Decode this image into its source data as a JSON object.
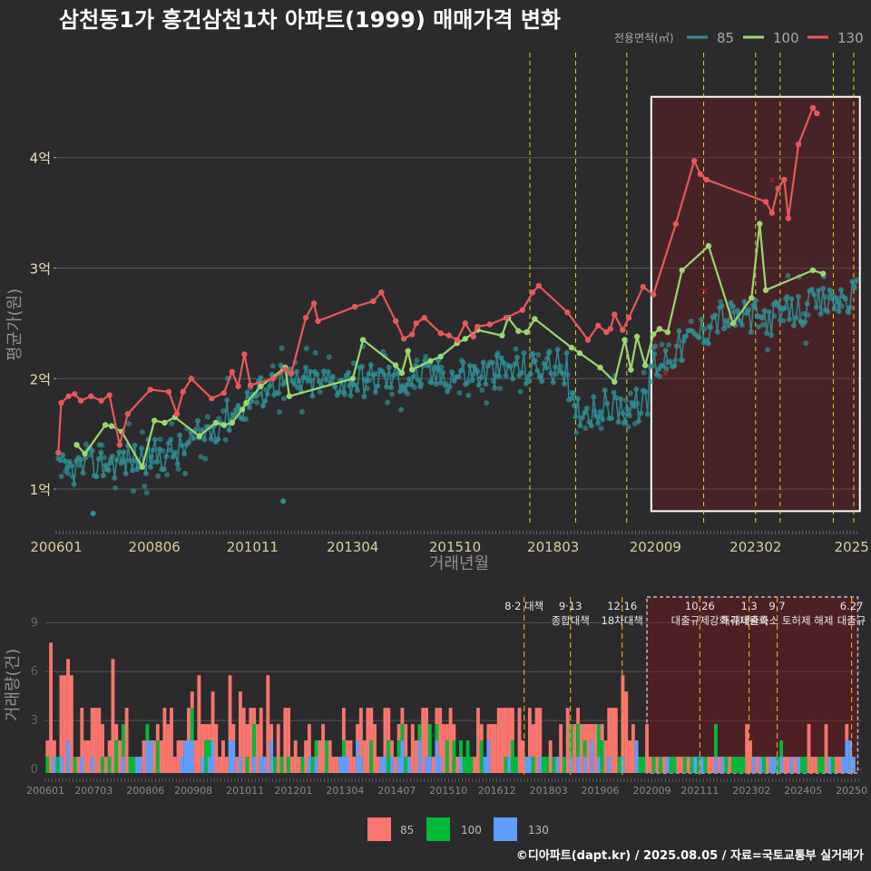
{
  "title": "삼천동1가 흥건삼천1차 아파트(1999) 매매가격 변화",
  "footer": "©디아파트(dapt.kr) / 2025.08.05 / 자료=국토교통부 실거래가",
  "legend_top": {
    "title": "전용면적(㎡)",
    "items": [
      "85",
      "100",
      "130"
    ]
  },
  "legend_bottom": {
    "items": [
      "85",
      "100",
      "130"
    ]
  },
  "colors": {
    "85": "#2f8f93",
    "100": "#9ad672",
    "130": "#e8585a",
    "bar85": "#f8766d",
    "bar100": "#00ba38",
    "bar130": "#619cff",
    "policy": "#e6d21e",
    "highlight": "#ffffff"
  },
  "chart_data": [
    {
      "type": "line",
      "title": "삼천동1가 흥건삼천1차 아파트(1999) 매매가격 변화",
      "xlabel": "거래년월",
      "ylabel": "평균가(원)",
      "x_ticks": [
        "200601",
        "200806",
        "201011",
        "201304",
        "201510",
        "201803",
        "202009",
        "202302",
        "2025"
      ],
      "y_ticks": [
        "1억",
        "2억",
        "3억",
        "4억"
      ],
      "ylim": [
        0.68,
        4.95
      ],
      "xlim": [
        2006.0,
        2025.7
      ],
      "grid": true,
      "legend_placement": "top-right",
      "policy_lines": [
        2017.58,
        2018.7,
        2019.95,
        2021.83,
        2023.1,
        2023.7,
        2025.0,
        2025.5
      ],
      "highlight_box": {
        "x": [
          2020.55,
          2025.65
        ],
        "y": [
          0.8,
          4.55
        ]
      },
      "series": [
        {
          "name": "130",
          "points": [
            [
              2006.05,
              1.33
            ],
            [
              2006.12,
              1.78
            ],
            [
              2006.3,
              1.84
            ],
            [
              2006.45,
              1.86
            ],
            [
              2006.6,
              1.8
            ],
            [
              2006.85,
              1.84
            ],
            [
              2007.1,
              1.8
            ],
            [
              2007.3,
              1.85
            ],
            [
              2007.55,
              1.4
            ],
            [
              2007.75,
              1.68
            ],
            [
              2008.3,
              1.9
            ],
            [
              2008.75,
              1.88
            ],
            [
              2008.95,
              1.68
            ],
            [
              2009.1,
              1.88
            ],
            [
              2009.3,
              2.0
            ],
            [
              2009.8,
              1.82
            ],
            [
              2010.1,
              1.87
            ],
            [
              2010.3,
              2.06
            ],
            [
              2010.45,
              1.93
            ],
            [
              2010.6,
              2.22
            ],
            [
              2010.75,
              1.94
            ],
            [
              2011.3,
              2.0
            ],
            [
              2011.6,
              2.08
            ],
            [
              2011.75,
              2.05
            ],
            [
              2012.1,
              2.55
            ],
            [
              2012.3,
              2.68
            ],
            [
              2012.4,
              2.52
            ],
            [
              2013.3,
              2.65
            ],
            [
              2013.75,
              2.7
            ],
            [
              2013.95,
              2.78
            ],
            [
              2014.3,
              2.52
            ],
            [
              2014.5,
              2.36
            ],
            [
              2014.7,
              2.4
            ],
            [
              2014.8,
              2.5
            ],
            [
              2015.0,
              2.55
            ],
            [
              2015.4,
              2.41
            ],
            [
              2015.6,
              2.39
            ],
            [
              2015.8,
              2.35
            ],
            [
              2016.0,
              2.5
            ],
            [
              2016.2,
              2.38
            ],
            [
              2016.3,
              2.47
            ],
            [
              2016.6,
              2.49
            ],
            [
              2017.0,
              2.55
            ],
            [
              2017.4,
              2.62
            ],
            [
              2017.65,
              2.78
            ],
            [
              2017.8,
              2.84
            ],
            [
              2018.5,
              2.6
            ],
            [
              2019.0,
              2.35
            ],
            [
              2019.25,
              2.48
            ],
            [
              2019.45,
              2.42
            ],
            [
              2019.55,
              2.45
            ],
            [
              2019.65,
              2.58
            ],
            [
              2019.85,
              2.44
            ],
            [
              2020.0,
              2.55
            ],
            [
              2020.35,
              2.83
            ],
            [
              2020.6,
              2.76
            ],
            [
              2021.15,
              3.4
            ],
            [
              2021.6,
              3.97
            ],
            [
              2021.75,
              3.85
            ],
            [
              2021.9,
              3.8
            ],
            [
              2023.35,
              3.6
            ],
            [
              2023.5,
              3.5
            ],
            [
              2023.65,
              3.72
            ],
            [
              2023.8,
              3.8
            ],
            [
              2023.9,
              3.45
            ],
            [
              2024.15,
              4.12
            ],
            [
              2024.5,
              4.45
            ],
            [
              2024.6,
              4.4
            ]
          ]
        },
        {
          "name": "100",
          "points": [
            [
              2006.5,
              1.4
            ],
            [
              2006.7,
              1.32
            ],
            [
              2007.2,
              1.58
            ],
            [
              2007.35,
              1.57
            ],
            [
              2007.6,
              1.52
            ],
            [
              2008.1,
              1.2
            ],
            [
              2008.4,
              1.62
            ],
            [
              2008.65,
              1.6
            ],
            [
              2008.9,
              1.65
            ],
            [
              2009.5,
              1.48
            ],
            [
              2009.9,
              1.6
            ],
            [
              2010.1,
              1.58
            ],
            [
              2010.3,
              1.6
            ],
            [
              2010.55,
              1.72
            ],
            [
              2010.65,
              1.78
            ],
            [
              2011.0,
              1.93
            ],
            [
              2011.6,
              2.1
            ],
            [
              2011.7,
              1.84
            ],
            [
              2013.25,
              2.0
            ],
            [
              2013.5,
              2.35
            ],
            [
              2014.3,
              2.12
            ],
            [
              2014.45,
              2.05
            ],
            [
              2014.6,
              2.25
            ],
            [
              2014.7,
              2.08
            ],
            [
              2015.15,
              2.16
            ],
            [
              2015.4,
              2.2
            ],
            [
              2015.8,
              2.32
            ],
            [
              2016.0,
              2.36
            ],
            [
              2016.3,
              2.44
            ],
            [
              2016.9,
              2.39
            ],
            [
              2017.05,
              2.55
            ],
            [
              2017.3,
              2.43
            ],
            [
              2017.5,
              2.42
            ],
            [
              2017.7,
              2.54
            ],
            [
              2018.6,
              2.28
            ],
            [
              2018.8,
              2.23
            ],
            [
              2019.3,
              2.1
            ],
            [
              2019.65,
              1.97
            ],
            [
              2019.9,
              2.35
            ],
            [
              2020.05,
              2.08
            ],
            [
              2020.2,
              2.38
            ],
            [
              2020.4,
              2.12
            ],
            [
              2020.6,
              2.4
            ],
            [
              2020.75,
              2.45
            ],
            [
              2020.95,
              2.42
            ],
            [
              2021.3,
              2.98
            ],
            [
              2021.95,
              3.2
            ],
            [
              2022.55,
              2.5
            ],
            [
              2023.0,
              2.73
            ],
            [
              2023.2,
              3.4
            ],
            [
              2023.35,
              2.8
            ],
            [
              2024.5,
              2.98
            ],
            [
              2024.75,
              2.95
            ]
          ]
        }
      ],
      "scatter_130_x": [
        [
          2021.85,
          2.8
        ],
        [
          2023.5,
          3.8
        ],
        [
          2020.9,
          2.05
        ]
      ]
    },
    {
      "type": "bar",
      "title": "",
      "ylabel": "거래량(건)",
      "x_ticks": [
        "200601",
        "200703",
        "200806",
        "200908",
        "201011",
        "201201",
        "201304",
        "201407",
        "201510",
        "201612",
        "201803",
        "201906",
        "202009",
        "202111",
        "202302",
        "202405",
        "20250"
      ],
      "y_ticks": [
        "0",
        "3",
        "6",
        "9"
      ],
      "ylim": [
        0,
        10.8
      ],
      "xlim": [
        2006.0,
        2025.75
      ],
      "stacked": true,
      "series_names": [
        "85",
        "100",
        "130"
      ],
      "policy_events": [
        {
          "x": 2017.58,
          "label": "8·2 대책"
        },
        {
          "x": 2018.7,
          "label": "9·13"
        },
        {
          "x": 2018.7,
          "label": "종합대책"
        },
        {
          "x": 2019.95,
          "label": "12·16"
        },
        {
          "x": 2019.95,
          "label": "18차대책"
        },
        {
          "x": 2021.83,
          "label": "10.26"
        },
        {
          "x": 2021.83,
          "label": "대출규제강화"
        },
        {
          "x": 2023.02,
          "label": "1.3"
        },
        {
          "x": 2023.02,
          "label": "규제완화"
        },
        {
          "x": 2023.7,
          "label": "9.7"
        },
        {
          "x": 2023.7,
          "label": "특례대출축소 토허제 해제"
        },
        {
          "x": 2025.5,
          "label": "6.27"
        },
        {
          "x": 2025.5,
          "label": "대출규"
        }
      ],
      "highlight_box": {
        "x": [
          2020.55,
          2025.65
        ],
        "y": [
          0,
          10.8
        ]
      }
    }
  ]
}
